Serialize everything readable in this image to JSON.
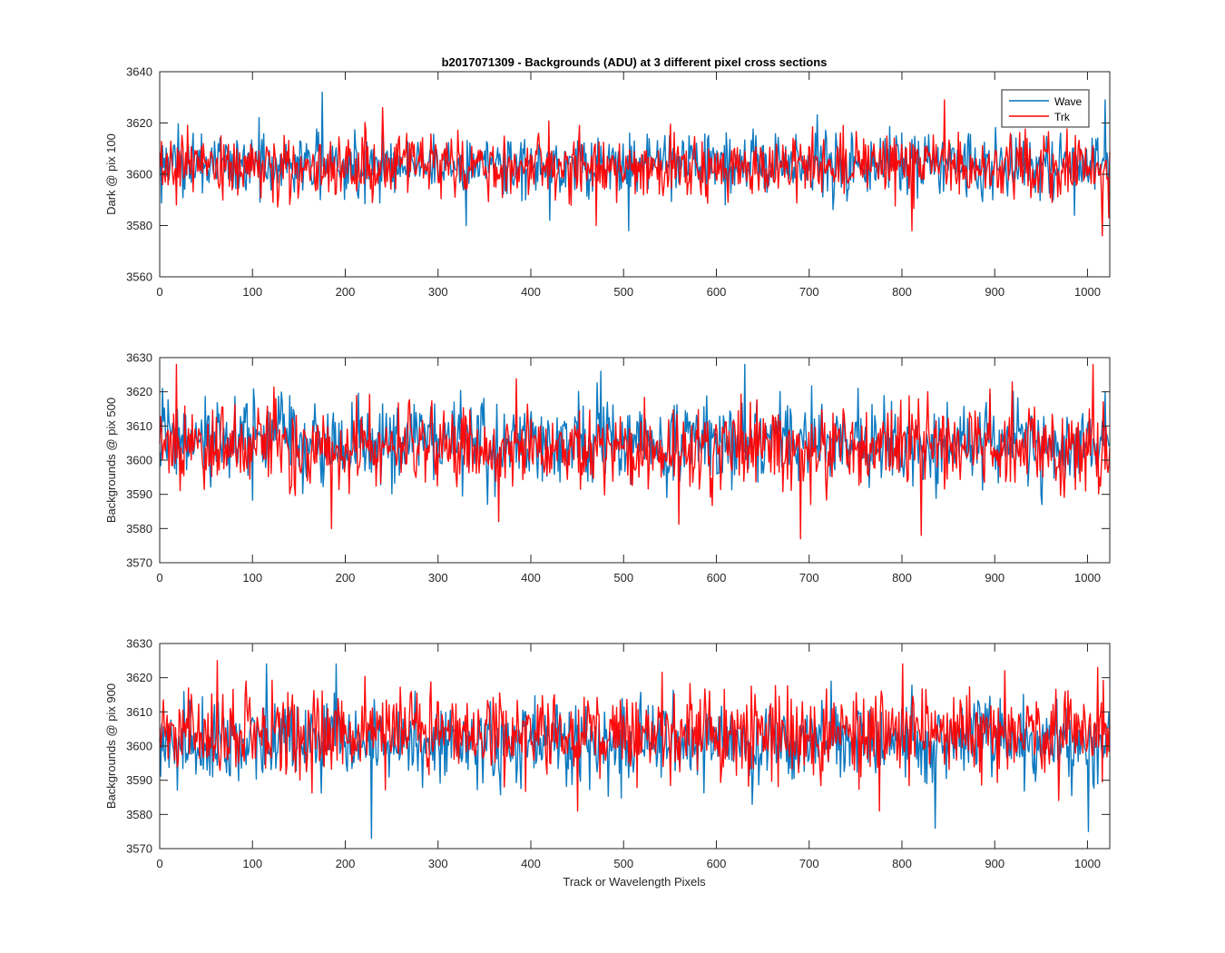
{
  "figure": {
    "title": "b2017071309 - Backgrounds (ADU) at 3 different pixel cross sections",
    "xlabel": "Track or Wavelength Pixels"
  },
  "legend": {
    "entries": [
      {
        "label": "Wave",
        "color": "#0072BD"
      },
      {
        "label": "Trk",
        "color": "#FF0000"
      }
    ],
    "placement": "top-right of first panel"
  },
  "chart_data": [
    {
      "type": "line",
      "title": "b2017071309 - Backgrounds (ADU) at 3 different pixel cross sections",
      "xlabel": "",
      "ylabel": "Dark @ pix 100",
      "xlim": [
        0,
        1024
      ],
      "ylim": [
        3560,
        3640
      ],
      "xticks": [
        0,
        100,
        200,
        300,
        400,
        500,
        600,
        700,
        800,
        900,
        1000
      ],
      "yticks": [
        3560,
        3580,
        3600,
        3620,
        3640
      ],
      "grid": false,
      "legend": true,
      "series": [
        {
          "name": "Wave",
          "color": "#0072BD",
          "x_range": [
            0,
            1024
          ],
          "n_points": 1024,
          "mean": 3604,
          "std": 6,
          "min": 3578,
          "max": 3632,
          "spikes": [
            [
              175,
              3632
            ],
            [
              1018,
              3629
            ],
            [
              330,
              3580
            ],
            [
              505,
              3578
            ],
            [
              420,
              3582
            ],
            [
              985,
              3584
            ]
          ]
        },
        {
          "name": "Trk",
          "color": "#FF0000",
          "x_range": [
            0,
            1024
          ],
          "n_points": 1024,
          "mean": 3603,
          "std": 6,
          "min": 3576,
          "max": 3627,
          "spikes": [
            [
              240,
              3626
            ],
            [
              845,
              3629
            ],
            [
              1015,
              3576
            ],
            [
              810,
              3578
            ],
            [
              470,
              3580
            ],
            [
              1022,
              3583
            ]
          ]
        }
      ]
    },
    {
      "type": "line",
      "title": "",
      "xlabel": "",
      "ylabel": "Backgrounds @ pix 500",
      "xlim": [
        0,
        1024
      ],
      "ylim": [
        3570,
        3630
      ],
      "xticks": [
        0,
        100,
        200,
        300,
        400,
        500,
        600,
        700,
        800,
        900,
        1000
      ],
      "yticks": [
        3570,
        3580,
        3590,
        3600,
        3610,
        3620,
        3630
      ],
      "grid": false,
      "legend": false,
      "series": [
        {
          "name": "Wave",
          "color": "#0072BD",
          "x_range": [
            0,
            1024
          ],
          "n_points": 1024,
          "mean": 3605,
          "std": 6,
          "min": 3585,
          "max": 3628,
          "spikes": [
            [
              630,
              3628
            ],
            [
              950,
              3587
            ],
            [
              1018,
              3620
            ],
            [
              3,
              3621
            ],
            [
              475,
              3626
            ]
          ]
        },
        {
          "name": "Trk",
          "color": "#FF0000",
          "x_range": [
            0,
            1024
          ],
          "n_points": 1024,
          "mean": 3604,
          "std": 6,
          "min": 3577,
          "max": 3628,
          "spikes": [
            [
              18,
              3628
            ],
            [
              1005,
              3628
            ],
            [
              690,
              3577
            ],
            [
              820,
              3578
            ],
            [
              185,
              3580
            ],
            [
              365,
              3582
            ]
          ]
        }
      ]
    },
    {
      "type": "line",
      "title": "",
      "xlabel": "Track or Wavelength Pixels",
      "ylabel": "Backgrounds @ pix 900",
      "xlim": [
        0,
        1024
      ],
      "ylim": [
        3570,
        3630
      ],
      "xticks": [
        0,
        100,
        200,
        300,
        400,
        500,
        600,
        700,
        800,
        900,
        1000
      ],
      "yticks": [
        3570,
        3580,
        3590,
        3600,
        3610,
        3620,
        3630
      ],
      "grid": false,
      "legend": false,
      "series": [
        {
          "name": "Wave",
          "color": "#0072BD",
          "x_range": [
            0,
            1024
          ],
          "n_points": 1024,
          "mean": 3601,
          "std": 6,
          "min": 3573,
          "max": 3624,
          "spikes": [
            [
              228,
              3573
            ],
            [
              1000,
              3575
            ],
            [
              835,
              3576
            ],
            [
              115,
              3624
            ],
            [
              190,
              3624
            ]
          ]
        },
        {
          "name": "Trk",
          "color": "#FF0000",
          "x_range": [
            0,
            1024
          ],
          "n_points": 1024,
          "mean": 3604,
          "std": 6,
          "min": 3581,
          "max": 3625,
          "spikes": [
            [
              62,
              3625
            ],
            [
              800,
              3624
            ],
            [
              450,
              3581
            ],
            [
              775,
              3581
            ],
            [
              1010,
              3623
            ]
          ]
        }
      ]
    }
  ]
}
